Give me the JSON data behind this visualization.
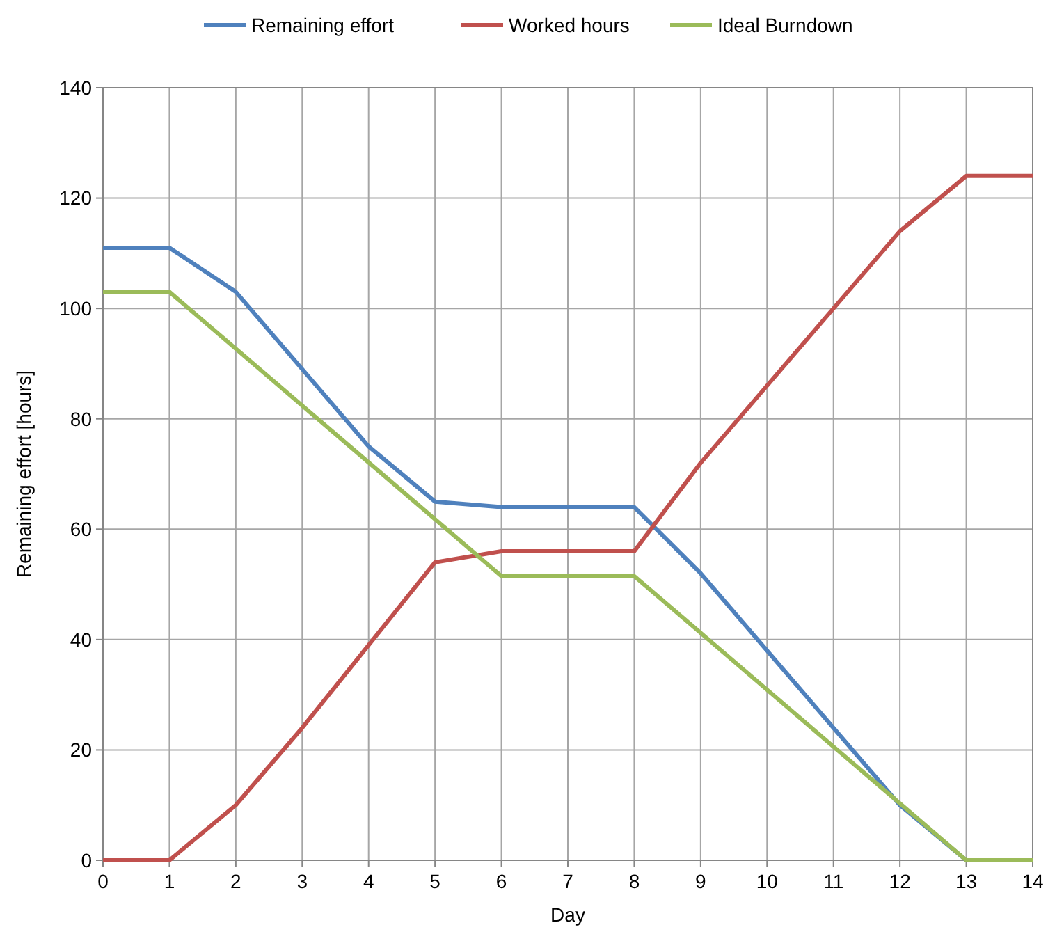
{
  "chart_data": {
    "type": "line",
    "xlabel": "Day",
    "ylabel": "Remaining effort [hours]",
    "x": [
      0,
      1,
      2,
      3,
      4,
      5,
      6,
      7,
      8,
      9,
      10,
      11,
      12,
      13,
      14
    ],
    "series": [
      {
        "name": "Remaining effort",
        "color": "#4f81bd",
        "values": [
          111,
          111,
          103,
          89,
          75,
          65,
          64,
          64,
          64,
          52,
          38,
          24,
          10,
          0,
          0
        ]
      },
      {
        "name": "Worked hours",
        "color": "#c0504d",
        "values": [
          0,
          0,
          10,
          24,
          39,
          54,
          56,
          56,
          56,
          72,
          86,
          100,
          114,
          124,
          124
        ]
      },
      {
        "name": "Ideal Burndown",
        "color": "#9bbb59",
        "values": [
          103,
          103,
          92.7,
          82.4,
          72.1,
          61.8,
          51.5,
          51.5,
          51.5,
          41.2,
          30.9,
          20.6,
          10.3,
          0,
          0
        ]
      }
    ],
    "xlim": [
      0,
      14
    ],
    "xticks": [
      0,
      1,
      2,
      3,
      4,
      5,
      6,
      7,
      8,
      9,
      10,
      11,
      12,
      13,
      14
    ],
    "ylim": [
      0,
      140
    ],
    "yticks": [
      0,
      20,
      40,
      60,
      80,
      100,
      120,
      140
    ],
    "grid": true,
    "legend": "top",
    "marker": "none",
    "line_style": "solid"
  }
}
